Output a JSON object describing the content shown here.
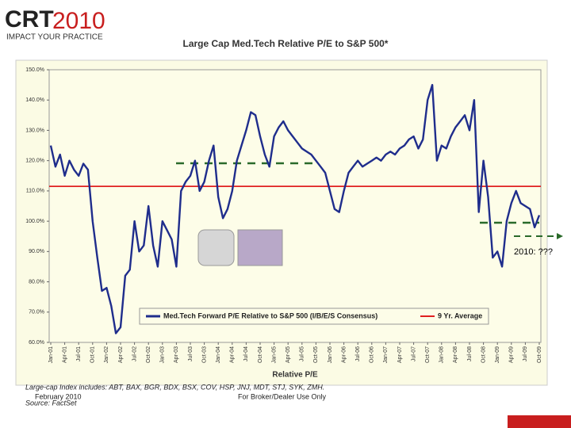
{
  "logo": {
    "text": "CRT",
    "year": "2010",
    "tagline": "IMPACT YOUR PRACTICE"
  },
  "chart_data": {
    "type": "line",
    "title": "Large Cap Med.Tech Relative P/E to S&P 500*",
    "x_label": "Relative P/E",
    "annotation": "2010: ???",
    "categories": [
      "Jan-01",
      null,
      null,
      "Apr-01",
      null,
      null,
      "Jul-01",
      null,
      null,
      "Oct-01",
      null,
      null,
      "Jan-02",
      null,
      null,
      "Apr-02",
      null,
      null,
      "Jul-02",
      null,
      null,
      "Oct-02",
      null,
      null,
      "Jan-03",
      null,
      null,
      "Apr-03",
      null,
      null,
      "Jul-03",
      null,
      null,
      "Oct-03",
      null,
      null,
      "Jan-04",
      null,
      null,
      "Apr-04",
      null,
      null,
      "Jul-04",
      null,
      null,
      "Oct-04",
      null,
      null,
      "Jan-05",
      null,
      null,
      "Apr-05",
      null,
      null,
      "Jul-05",
      null,
      null,
      "Oct-05",
      null,
      null,
      "Jan-06",
      null,
      null,
      "Apr-06",
      null,
      null,
      "Jul-06",
      null,
      null,
      "Oct-06",
      null,
      null,
      "Jan-07",
      null,
      null,
      "Apr-07",
      null,
      null,
      "Jul-07",
      null,
      null,
      "Oct-07",
      null,
      null,
      "Jan-08",
      null,
      null,
      "Apr-08",
      null,
      null,
      "Jul-08",
      null,
      null,
      "Oct-08",
      null,
      null,
      "Jan-09",
      null,
      null,
      "Apr-09",
      null,
      null,
      "Jul-09",
      null,
      null,
      "Oct-09"
    ],
    "series": [
      {
        "name": "Med.Tech Forward P/E Relative to S&P 500 (I/B/E/S Consensus)",
        "color": "#1f2d8c",
        "values": [
          125,
          118,
          122,
          115,
          120,
          117,
          115,
          119,
          117,
          100,
          88,
          77,
          78,
          72,
          63,
          65,
          82,
          84,
          100,
          90,
          92,
          105,
          92,
          85,
          100,
          97,
          94,
          85,
          110,
          113,
          115,
          120,
          110,
          113,
          120,
          125,
          108,
          101,
          104,
          110,
          120,
          125,
          130,
          136,
          135,
          128,
          122,
          118,
          128,
          131,
          133,
          130,
          128,
          126,
          124,
          123,
          122,
          120,
          118,
          116,
          110,
          104,
          103,
          110,
          116,
          118,
          120,
          118,
          119,
          120,
          121,
          120,
          122,
          123,
          122,
          124,
          125,
          127,
          128,
          124,
          127,
          140,
          145,
          120,
          125,
          124,
          128,
          131,
          133,
          135,
          130,
          140,
          103,
          120,
          108,
          88,
          90,
          85,
          100,
          106,
          110,
          106,
          105,
          104,
          98,
          102
        ]
      }
    ],
    "reference_line": {
      "name": "9 Yr. Average",
      "value": 111.5,
      "color": "#e02020"
    },
    "ylim": [
      60,
      150
    ],
    "yticks": [
      {
        "value": 60,
        "label": "60.0%"
      },
      {
        "value": 70,
        "label": "70.0%"
      },
      {
        "value": 80,
        "label": "80.0%"
      },
      {
        "value": 90,
        "label": "90.0%"
      },
      {
        "value": 100,
        "label": "100.0%"
      },
      {
        "value": 110,
        "label": "110.0%"
      },
      {
        "value": 120,
        "label": "120.0%"
      },
      {
        "value": 130,
        "label": "130.0%"
      },
      {
        "value": 140,
        "label": "140.0%"
      },
      {
        "value": 150,
        "label": "150.0%"
      }
    ],
    "grid": false
  },
  "footer": {
    "note": "Large-cap Index includes: ABT, BAX, BGR, BDX, BSX, COV, HSP, JNJ, MDT, STJ, SYK, ZMH.",
    "date": "February 2010",
    "source": "Source: FactSet",
    "disclaimer": "For Broker/Dealer Use Only"
  }
}
